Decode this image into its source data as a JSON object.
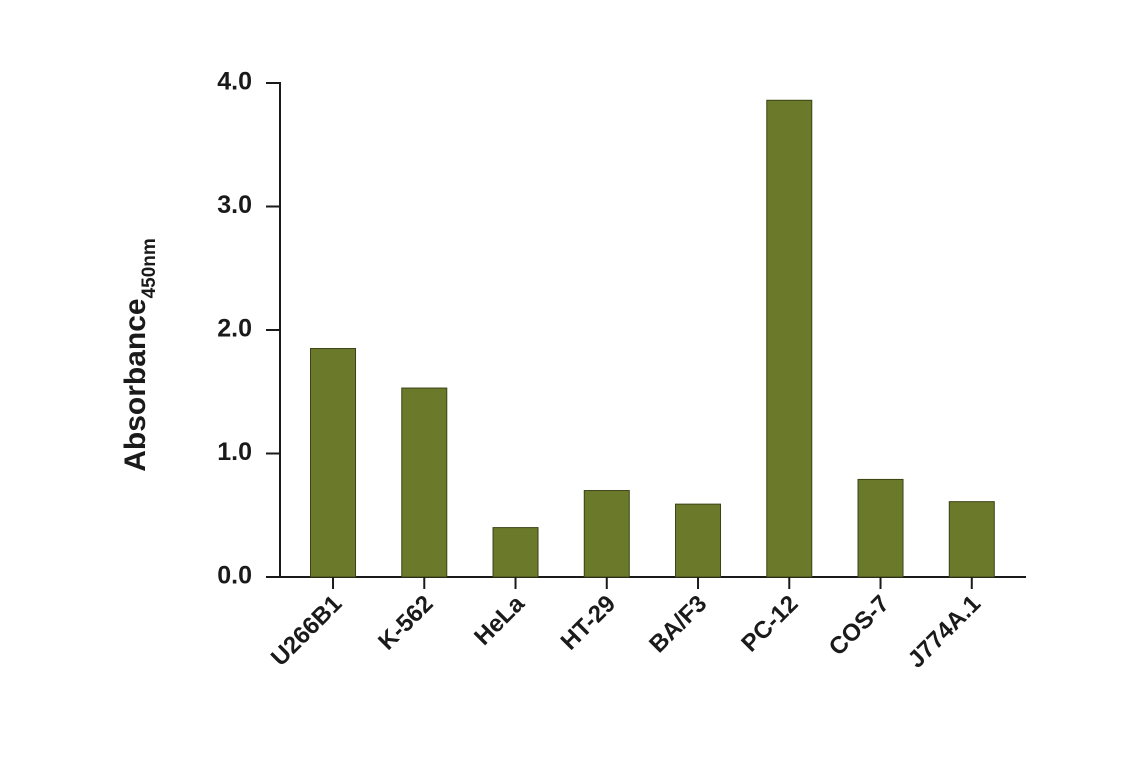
{
  "chart_data": {
    "type": "bar",
    "ylabel": "Absorbance",
    "ylabel_subscript": "450nm",
    "categories": [
      "U266B1",
      "K-562",
      "HeLa",
      "HT-29",
      "BA/F3",
      "PC-12",
      "COS-7",
      "J774A.1"
    ],
    "values": [
      1.85,
      1.53,
      0.4,
      0.7,
      0.59,
      3.86,
      0.79,
      0.61
    ],
    "color": "#6b7a2a",
    "ylim": [
      0,
      4
    ],
    "yticks": [
      {
        "value": 0,
        "label": "0.0"
      },
      {
        "value": 1,
        "label": "1.0"
      },
      {
        "value": 2,
        "label": "2.0"
      },
      {
        "value": 3,
        "label": "3.0"
      },
      {
        "value": 4,
        "label": "4.0"
      }
    ],
    "grid": false
  }
}
